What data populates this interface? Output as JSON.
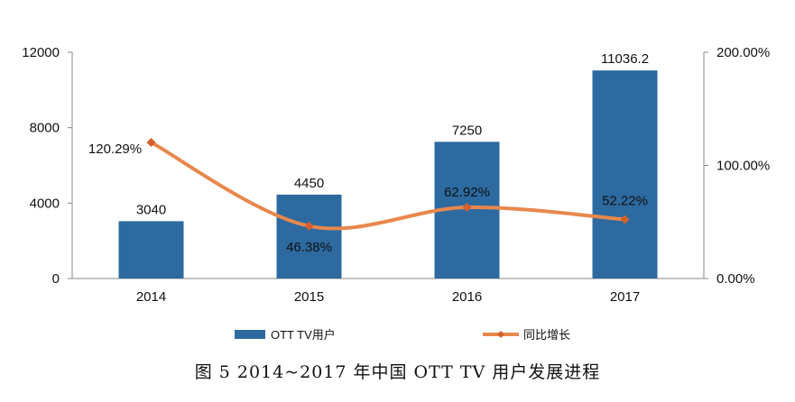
{
  "caption": "图 5  2014~2017 年中国 OTT TV 用户发展进程",
  "colors": {
    "bar": "#2d6aa0",
    "line": "#e8884c",
    "marker": "#d4602c",
    "axis": "#888888"
  },
  "chart_data": {
    "type": "bar",
    "categories": [
      "2014",
      "2015",
      "2016",
      "2017"
    ],
    "series": [
      {
        "name": "OTT TV用户",
        "type": "bar",
        "axis": "left",
        "values": [
          3040,
          4450,
          7250,
          11036.2
        ],
        "labels": [
          "3040",
          "4450",
          "7250",
          "11036.2"
        ]
      },
      {
        "name": "同比增长",
        "type": "line",
        "axis": "right",
        "values": [
          120.29,
          46.38,
          62.92,
          52.22
        ],
        "labels": [
          "120.29%",
          "46.38%",
          "62.92%",
          "52.22%"
        ]
      }
    ],
    "y_left": {
      "range": [
        0,
        12000
      ],
      "ticks": [
        "0",
        "4000",
        "8000",
        "12000"
      ]
    },
    "y_right": {
      "range": [
        0,
        200
      ],
      "ticks": [
        "0.00%",
        "100.00%",
        "200.00%"
      ]
    },
    "legend": [
      "OTT TV用户",
      "同比增长"
    ],
    "legend_position": "bottom",
    "grid": false
  }
}
